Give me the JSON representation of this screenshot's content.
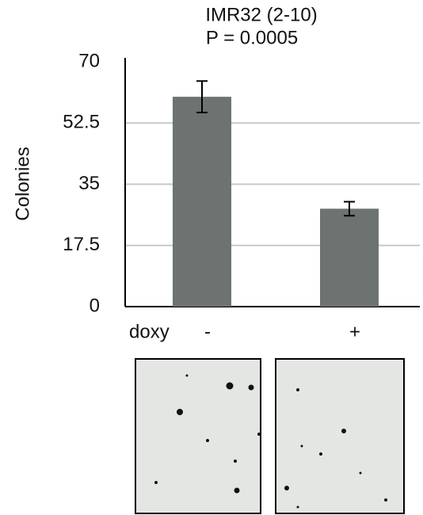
{
  "chart_data": {
    "type": "bar",
    "title": "IMR32 (2-10)",
    "subtitle": "P = 0.0005",
    "y_label": "Colonies",
    "x_label": "doxy",
    "categories": [
      "-",
      "+"
    ],
    "values": [
      60,
      28
    ],
    "errors": [
      4.5,
      2
    ],
    "color": "#6d7370",
    "ylim": [
      0,
      70
    ],
    "yticks": [
      0,
      17.5,
      35,
      52.5,
      70
    ],
    "grid": true
  }
}
